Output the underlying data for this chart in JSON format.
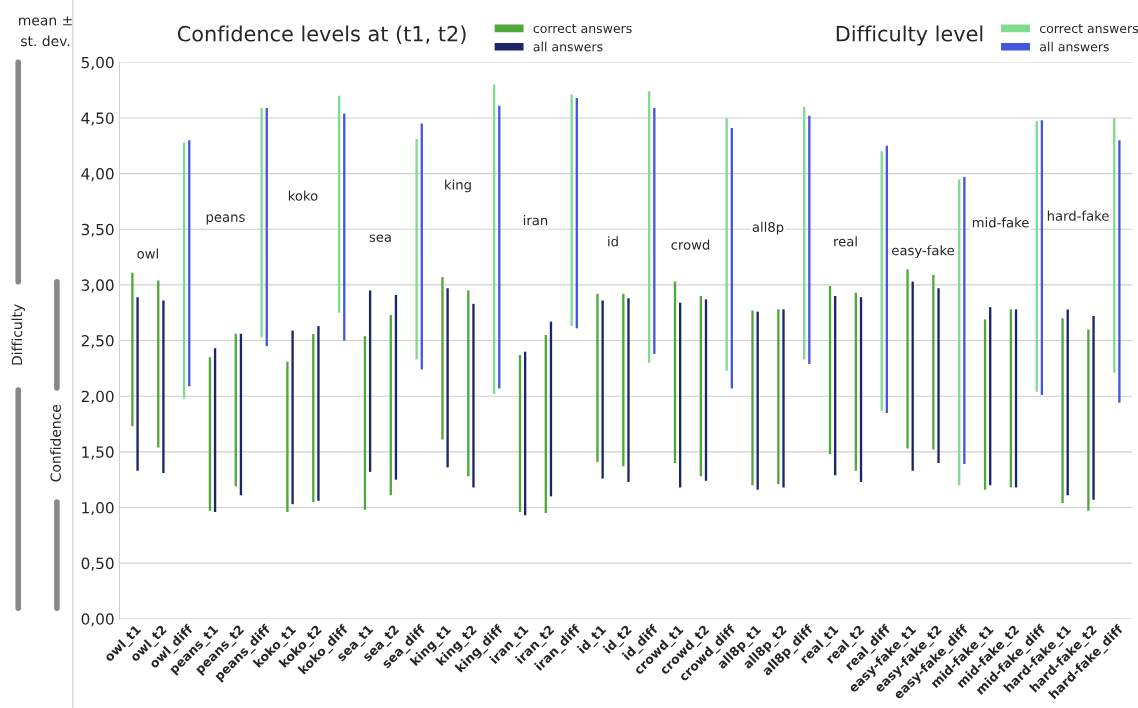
{
  "chart_data": {
    "type": "bar",
    "title": "Confidence levels at (t1, t2)",
    "subtitle": "Difficulty level",
    "categories": [
      "owl_t1",
      "owl_t2",
      "owl_diff",
      "peans_t1",
      "peans_t2",
      "peans_diff",
      "koko_t1",
      "koko_t2",
      "koko_diff",
      "sea_t1",
      "sea_t2",
      "sea_diff",
      "king_t1",
      "king_t2",
      "king_diff",
      "iran_t1",
      "iran_t2",
      "iran_diff",
      "id_t1",
      "id_t2",
      "id_diff",
      "crowd_t1",
      "crowd_t2",
      "crowd_diff",
      "all8p_t1",
      "all8p_t2",
      "all8p_diff",
      "real_t1",
      "real_t2",
      "real_diff",
      "easy-fake_t1",
      "easy-fake_t2",
      "easy-fake_diff",
      "mid-fake_t1",
      "mid-fake_t2",
      "mid-fake_diff",
      "hard-fake_t1",
      "hard-fake_t2",
      "hard-fake_diff"
    ],
    "series": [
      {
        "name": "correct answers",
        "color": "#4ea83c",
        "base": [
          1.73,
          1.54,
          null,
          0.97,
          1.19,
          null,
          0.96,
          1.05,
          null,
          0.98,
          1.11,
          null,
          1.61,
          1.28,
          null,
          0.96,
          0.95,
          null,
          1.41,
          1.37,
          null,
          1.4,
          1.28,
          null,
          1.2,
          1.21,
          null,
          1.48,
          1.33,
          null,
          1.53,
          1.52,
          null,
          1.16,
          1.18,
          null,
          1.04,
          0.97,
          null
        ],
        "values": [
          1.38,
          1.5,
          null,
          1.38,
          1.37,
          null,
          1.35,
          1.51,
          null,
          1.56,
          1.62,
          null,
          1.46,
          1.67,
          null,
          1.41,
          1.6,
          null,
          1.51,
          1.55,
          null,
          1.63,
          1.62,
          null,
          1.57,
          1.57,
          null,
          1.51,
          1.6,
          null,
          1.61,
          1.57,
          null,
          1.53,
          1.6,
          null,
          1.66,
          1.63,
          null
        ]
      },
      {
        "name": "all answers",
        "color": "#1c2566",
        "base": [
          1.33,
          1.31,
          null,
          0.96,
          1.11,
          null,
          1.03,
          1.06,
          null,
          1.32,
          1.25,
          null,
          1.36,
          1.18,
          null,
          0.93,
          1.1,
          null,
          1.26,
          1.23,
          null,
          1.18,
          1.24,
          null,
          1.16,
          1.18,
          null,
          1.29,
          1.23,
          null,
          1.33,
          1.4,
          null,
          1.2,
          1.18,
          null,
          1.11,
          1.07,
          null
        ],
        "values": [
          1.56,
          1.55,
          null,
          1.47,
          1.45,
          null,
          1.56,
          1.57,
          null,
          1.63,
          1.66,
          null,
          1.61,
          1.65,
          null,
          1.47,
          1.57,
          null,
          1.6,
          1.65,
          null,
          1.66,
          1.63,
          null,
          1.6,
          1.6,
          null,
          1.61,
          1.66,
          null,
          1.7,
          1.57,
          null,
          1.6,
          1.6,
          null,
          1.67,
          1.65,
          null
        ]
      },
      {
        "name": "correct answers",
        "color": "#7fdc8f",
        "base": [
          null,
          null,
          1.98,
          null,
          null,
          2.53,
          null,
          null,
          2.75,
          null,
          null,
          2.33,
          null,
          null,
          2.02,
          null,
          null,
          2.63,
          null,
          null,
          2.3,
          null,
          null,
          2.23,
          null,
          null,
          2.33,
          null,
          null,
          1.87,
          null,
          null,
          1.2,
          null,
          null,
          2.04,
          null,
          null,
          2.21
        ],
        "values": [
          null,
          null,
          2.3,
          null,
          null,
          2.06,
          null,
          null,
          1.95,
          null,
          null,
          1.98,
          null,
          null,
          2.78,
          null,
          null,
          2.08,
          null,
          null,
          2.44,
          null,
          null,
          2.27,
          null,
          null,
          2.27,
          null,
          null,
          2.33,
          null,
          null,
          2.75,
          null,
          null,
          2.43,
          null,
          null,
          2.29
        ]
      },
      {
        "name": "all answers",
        "color": "#4456e0",
        "base": [
          null,
          null,
          2.09,
          null,
          null,
          2.45,
          null,
          null,
          2.5,
          null,
          null,
          2.24,
          null,
          null,
          2.07,
          null,
          null,
          2.61,
          null,
          null,
          2.38,
          null,
          null,
          2.07,
          null,
          null,
          2.29,
          null,
          null,
          1.85,
          null,
          null,
          1.39,
          null,
          null,
          2.01,
          null,
          null,
          1.94
        ],
        "values": [
          null,
          null,
          2.21,
          null,
          null,
          2.14,
          null,
          null,
          2.04,
          null,
          null,
          2.21,
          null,
          null,
          2.54,
          null,
          null,
          2.07,
          null,
          null,
          2.21,
          null,
          null,
          2.34,
          null,
          null,
          2.23,
          null,
          null,
          2.4,
          null,
          null,
          2.58,
          null,
          null,
          2.47,
          null,
          null,
          2.36
        ]
      }
    ],
    "ylim": [
      0,
      5
    ],
    "yticks": [
      {
        "value": 0,
        "label": "0,00"
      },
      {
        "value": 0.5,
        "label": "0,50"
      },
      {
        "value": 1,
        "label": "1,00"
      },
      {
        "value": 1.5,
        "label": "1,50"
      },
      {
        "value": 2,
        "label": "2,00"
      },
      {
        "value": 2.5,
        "label": "2,50"
      },
      {
        "value": 3,
        "label": "3,00"
      },
      {
        "value": 3.5,
        "label": "3,50"
      },
      {
        "value": 4,
        "label": "4,00"
      },
      {
        "value": 4.5,
        "label": "4,50"
      },
      {
        "value": 5,
        "label": "5,00"
      }
    ],
    "grid": "y",
    "legend": "top",
    "annotations": [
      "mean ±\nst. dev.",
      "Difficulty",
      "Confidence",
      "owl",
      "peans",
      "koko",
      "sea",
      "king",
      "iran",
      "id",
      "crowd",
      "all8p",
      "real",
      "easy-fake",
      "mid-fake",
      "hard-fake"
    ]
  }
}
